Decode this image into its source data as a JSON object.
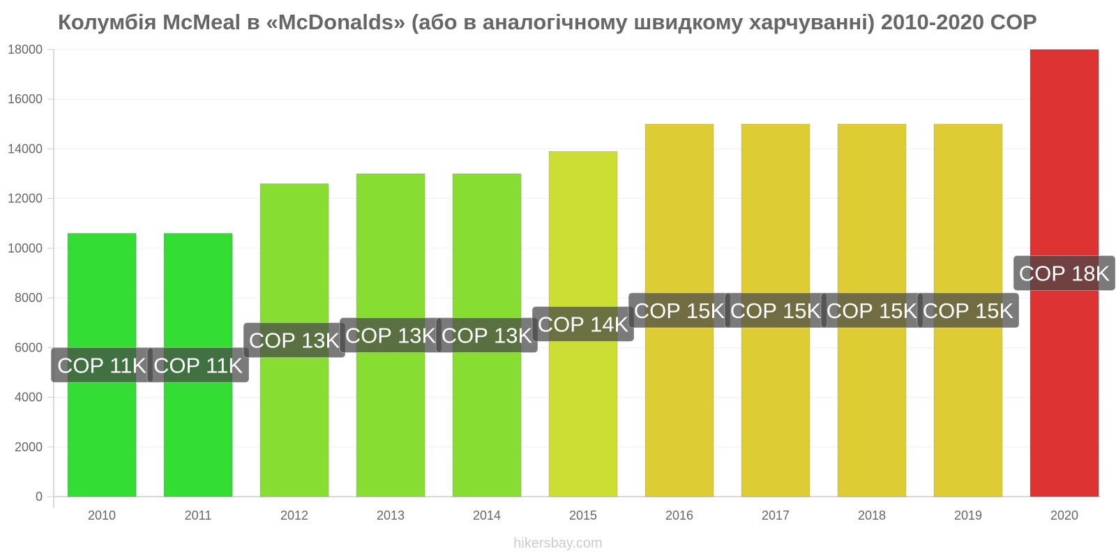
{
  "chart_data": {
    "type": "bar",
    "title": "Колумбія McMeal в «McDonalds» (або в аналогічному швидкому харчуванні) 2010-2020 COP",
    "xlabel": "",
    "ylabel": "",
    "ylim": [
      0,
      18000
    ],
    "yticks": [
      "0",
      "2000",
      "4000",
      "6000",
      "8000",
      "10000",
      "12000",
      "14000",
      "16000",
      "18000"
    ],
    "categories": [
      "2010",
      "2011",
      "2012",
      "2013",
      "2014",
      "2015",
      "2016",
      "2017",
      "2018",
      "2019",
      "2020"
    ],
    "values": [
      10600,
      10600,
      12600,
      13000,
      13000,
      13900,
      15000,
      15000,
      15000,
      15000,
      18000
    ],
    "labels": [
      "COP 11K",
      "COP 11K",
      "COP 13K",
      "COP 13K",
      "COP 13K",
      "COP 14K",
      "COP 15K",
      "COP 15K",
      "COP 15K",
      "COP 15K",
      "COP 18K"
    ],
    "colors": [
      "#33dd33",
      "#33dd33",
      "#88dd33",
      "#88dd33",
      "#88dd33",
      "#ccdd33",
      "#ddcc33",
      "#ddcc33",
      "#ddcc33",
      "#ddcc33",
      "#dd3333"
    ],
    "grid": true,
    "legend": "none"
  },
  "footer": "hikersbay.com"
}
